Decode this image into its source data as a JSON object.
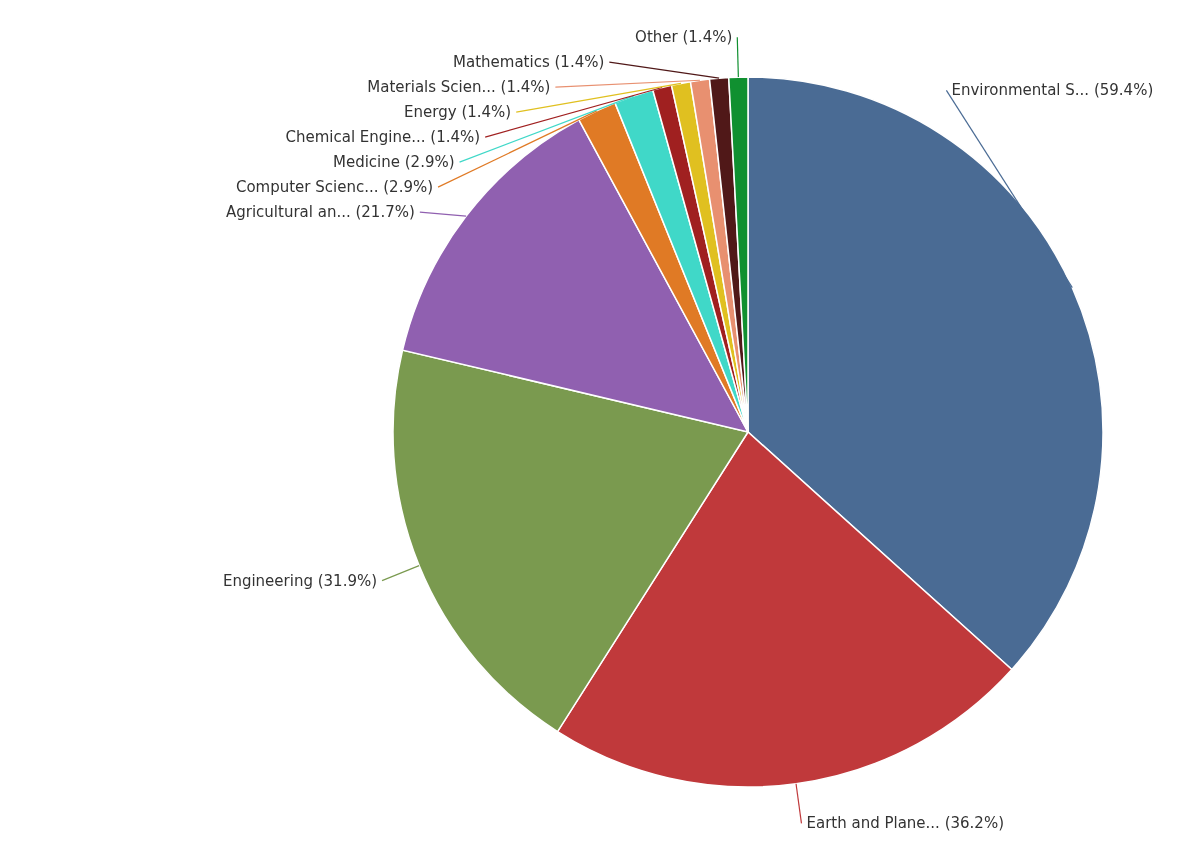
{
  "chart_data": {
    "type": "pie",
    "categories": [
      "Environmental S...",
      "Earth and Plane...",
      "Engineering",
      "Agricultural an...",
      "Computer Scienc...",
      "Medicine",
      "Chemical Engine...",
      "Energy",
      "Materials Scien...",
      "Mathematics",
      "Other"
    ],
    "values": [
      59.4,
      36.2,
      31.9,
      21.7,
      2.9,
      2.9,
      1.4,
      1.4,
      1.4,
      1.4,
      1.4
    ],
    "value_labels": [
      "(59.4%)",
      "(36.2%)",
      "(31.9%)",
      "(21.7%)",
      "(2.9%)",
      "(2.9%)",
      "(1.4%)",
      "(1.4%)",
      "(1.4%)",
      "(1.4%)",
      "(1.4%)"
    ],
    "colors": [
      "#4a6b94",
      "#c0393b",
      "#7a9a4f",
      "#9060b0",
      "#e07a25",
      "#40d8c8",
      "#a02020",
      "#e0c020",
      "#e89070",
      "#501818",
      "#109030"
    ]
  }
}
